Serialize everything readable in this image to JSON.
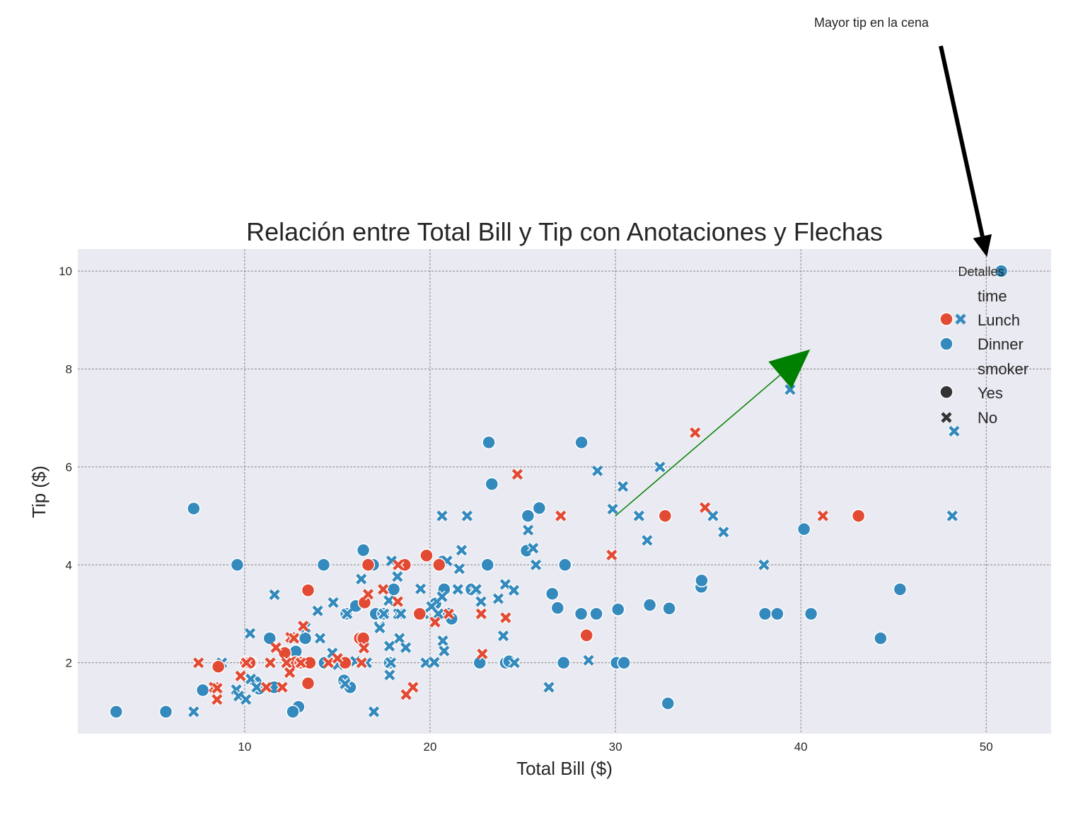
{
  "chart_data": {
    "type": "scatter",
    "title": "Relación entre Total Bill y Tip con Anotaciones y Flechas",
    "xlabel": "Total Bill ($)",
    "ylabel": "Tip ($)",
    "xlim": [
      1,
      53.5
    ],
    "ylim": [
      0.55,
      10.45
    ],
    "xticks": [
      10,
      20,
      30,
      40,
      50
    ],
    "yticks": [
      2,
      4,
      6,
      8,
      10
    ],
    "grid": true,
    "legend": {
      "title": "Detalles",
      "placement": "top-right",
      "hue_title": "time",
      "style_title": "smoker",
      "entries": [
        {
          "label": "Lunch",
          "color": "#E24A33",
          "marker": "circle-x"
        },
        {
          "label": "Dinner",
          "color": "#348ABD",
          "marker": "circle"
        },
        {
          "label": "Yes",
          "color": "#333333",
          "marker": "circle"
        },
        {
          "label": "No",
          "color": "#333333",
          "marker": "x"
        }
      ]
    },
    "annotations": [
      {
        "text": "Mayor tip en la cena",
        "xy": [
          50.8,
          10.0
        ],
        "xytext": [
          38,
          16.0
        ],
        "arrow_color": "#000000"
      },
      {
        "text": "",
        "xy": [
          40.5,
          8.4
        ],
        "xytext": [
          30,
          5.0
        ],
        "arrow_color": "#008000"
      }
    ],
    "colors": {
      "lunch": "#E24A33",
      "dinner": "#348ABD"
    },
    "series": [
      {
        "name": "Dinner",
        "smoker": "Yes",
        "marker": "circle",
        "color": "#348ABD",
        "points": [
          [
            3.07,
            1.0
          ],
          [
            5.75,
            1.0
          ],
          [
            7.25,
            5.15
          ],
          [
            7.74,
            1.44
          ],
          [
            9.6,
            4.0
          ],
          [
            10.34,
            2.0
          ],
          [
            10.59,
            1.61
          ],
          [
            10.77,
            1.47
          ],
          [
            11.35,
            2.5
          ],
          [
            11.59,
            1.5
          ],
          [
            12.16,
            2.2
          ],
          [
            12.9,
            1.1
          ],
          [
            12.6,
            1.0
          ],
          [
            12.76,
            2.23
          ],
          [
            13.27,
            2.5
          ],
          [
            14.26,
            4.0
          ],
          [
            14.31,
            2.0
          ],
          [
            15.36,
            1.64
          ],
          [
            15.69,
            1.5
          ],
          [
            15.48,
            3.0
          ],
          [
            16.0,
            3.16
          ],
          [
            16.27,
            2.5
          ],
          [
            16.93,
            4.0
          ],
          [
            16.4,
            4.3
          ],
          [
            17.07,
            3.0
          ],
          [
            17.47,
            3.0
          ],
          [
            17.82,
            2.0
          ],
          [
            18.04,
            3.5
          ],
          [
            20.69,
            4.07
          ],
          [
            20.29,
            3.21
          ],
          [
            20.76,
            3.5
          ],
          [
            21.01,
            3.0
          ],
          [
            22.23,
            3.5
          ],
          [
            22.68,
            2.0
          ],
          [
            23.1,
            4.0
          ],
          [
            23.17,
            6.5
          ],
          [
            23.33,
            5.65
          ],
          [
            21.16,
            2.9
          ],
          [
            24.08,
            2.0
          ],
          [
            24.27,
            2.03
          ],
          [
            25.28,
            5.0
          ],
          [
            25.21,
            4.29
          ],
          [
            25.89,
            5.16
          ],
          [
            26.59,
            3.41
          ],
          [
            26.88,
            3.12
          ],
          [
            27.2,
            2.0
          ],
          [
            27.28,
            4.0
          ],
          [
            28.17,
            6.5
          ],
          [
            28.15,
            3.0
          ],
          [
            28.97,
            3.0
          ],
          [
            30.06,
            2.0
          ],
          [
            30.14,
            3.09
          ],
          [
            30.46,
            2.0
          ],
          [
            31.85,
            3.18
          ],
          [
            32.83,
            1.17
          ],
          [
            32.9,
            3.11
          ],
          [
            34.63,
            3.55
          ],
          [
            34.65,
            3.68
          ],
          [
            38.07,
            3.0
          ],
          [
            38.73,
            3.0
          ],
          [
            40.17,
            4.73
          ],
          [
            40.55,
            3.0
          ],
          [
            44.3,
            2.5
          ],
          [
            45.35,
            3.5
          ],
          [
            50.81,
            10.0
          ]
        ]
      },
      {
        "name": "Dinner",
        "smoker": "No",
        "marker": "x",
        "color": "#348ABD",
        "points": [
          [
            7.25,
            1.0
          ],
          [
            8.77,
            2.0
          ],
          [
            9.55,
            1.45
          ],
          [
            9.68,
            1.32
          ],
          [
            10.07,
            1.25
          ],
          [
            10.29,
            2.6
          ],
          [
            10.33,
            1.67
          ],
          [
            10.65,
            1.5
          ],
          [
            11.61,
            3.39
          ],
          [
            11.38,
            2.0
          ],
          [
            12.03,
            1.5
          ],
          [
            12.43,
            1.8
          ],
          [
            12.54,
            2.5
          ],
          [
            12.69,
            2.0
          ],
          [
            13.0,
            2.0
          ],
          [
            13.13,
            2.0
          ],
          [
            13.42,
            1.58
          ],
          [
            13.28,
            2.72
          ],
          [
            13.94,
            3.06
          ],
          [
            14.07,
            2.5
          ],
          [
            14.73,
            2.2
          ],
          [
            14.78,
            3.23
          ],
          [
            15.04,
            1.96
          ],
          [
            15.42,
            1.57
          ],
          [
            15.53,
            3.0
          ],
          [
            15.98,
            2.03
          ],
          [
            16.29,
            3.71
          ],
          [
            16.45,
            2.47
          ],
          [
            16.58,
            2.0
          ],
          [
            16.97,
            1.0
          ],
          [
            17.26,
            2.74
          ],
          [
            17.29,
            2.71
          ],
          [
            17.51,
            3.0
          ],
          [
            17.78,
            3.27
          ],
          [
            17.81,
            2.34
          ],
          [
            17.89,
            2.0
          ],
          [
            17.92,
            4.08
          ],
          [
            17.82,
            1.75
          ],
          [
            18.24,
            3.76
          ],
          [
            18.29,
            3.0
          ],
          [
            18.35,
            2.5
          ],
          [
            18.43,
            3.0
          ],
          [
            18.69,
            2.31
          ],
          [
            19.44,
            3.0
          ],
          [
            19.49,
            3.51
          ],
          [
            19.77,
            2.0
          ],
          [
            20.08,
            3.15
          ],
          [
            20.23,
            2.01
          ],
          [
            20.45,
            3.0
          ],
          [
            20.65,
            3.35
          ],
          [
            20.69,
            2.45
          ],
          [
            20.76,
            2.24
          ],
          [
            20.92,
            4.08
          ],
          [
            20.65,
            5.0
          ],
          [
            21.58,
            3.92
          ],
          [
            21.7,
            4.3
          ],
          [
            22.42,
            3.48
          ],
          [
            22.49,
            3.5
          ],
          [
            22.75,
            3.25
          ],
          [
            22.0,
            5.0
          ],
          [
            23.68,
            3.31
          ],
          [
            23.95,
            2.55
          ],
          [
            24.06,
            3.6
          ],
          [
            24.55,
            2.0
          ],
          [
            24.71,
            5.85
          ],
          [
            25.29,
            4.71
          ],
          [
            25.56,
            4.34
          ],
          [
            25.71,
            4.0
          ],
          [
            26.41,
            1.5
          ],
          [
            28.44,
            2.56
          ],
          [
            28.55,
            2.05
          ],
          [
            29.03,
            5.92
          ],
          [
            29.85,
            5.14
          ],
          [
            30.4,
            5.6
          ],
          [
            31.27,
            5.0
          ],
          [
            31.71,
            4.5
          ],
          [
            32.4,
            6.0
          ],
          [
            35.26,
            5.0
          ],
          [
            35.83,
            4.67
          ],
          [
            38.01,
            4.0
          ],
          [
            39.42,
            7.58
          ],
          [
            48.17,
            5.0
          ],
          [
            48.27,
            6.73
          ],
          [
            24.52,
            3.48
          ],
          [
            19.65,
            3.0
          ],
          [
            21.5,
            3.5
          ]
        ]
      },
      {
        "name": "Lunch",
        "smoker": "Yes",
        "marker": "circle",
        "color": "#E24A33",
        "points": [
          [
            8.58,
            1.92
          ],
          [
            10.07,
            2.0
          ],
          [
            10.27,
            2.0
          ],
          [
            12.16,
            2.2
          ],
          [
            12.74,
            2.01
          ],
          [
            13.0,
            2.0
          ],
          [
            13.42,
            3.48
          ],
          [
            13.42,
            1.58
          ],
          [
            13.51,
            2.0
          ],
          [
            15.42,
            2.0
          ],
          [
            16.21,
            2.5
          ],
          [
            16.4,
            2.5
          ],
          [
            16.47,
            3.23
          ],
          [
            16.66,
            4.0
          ],
          [
            18.64,
            4.0
          ],
          [
            19.44,
            3.0
          ],
          [
            19.81,
            4.19
          ],
          [
            20.49,
            4.0
          ],
          [
            28.44,
            2.56
          ],
          [
            32.68,
            5.0
          ],
          [
            43.11,
            5.0
          ]
        ]
      },
      {
        "name": "Lunch",
        "smoker": "No",
        "marker": "x",
        "color": "#E24A33",
        "points": [
          [
            7.51,
            2.0
          ],
          [
            8.35,
            1.5
          ],
          [
            8.52,
            1.48
          ],
          [
            8.51,
            1.25
          ],
          [
            9.78,
            1.73
          ],
          [
            10.09,
            2.0
          ],
          [
            11.17,
            1.5
          ],
          [
            11.38,
            2.0
          ],
          [
            11.69,
            2.31
          ],
          [
            12.03,
            1.5
          ],
          [
            12.26,
            2.0
          ],
          [
            12.43,
            1.8
          ],
          [
            12.48,
            2.52
          ],
          [
            12.66,
            2.5
          ],
          [
            13.03,
            2.0
          ],
          [
            13.16,
            2.75
          ],
          [
            14.52,
            2.0
          ],
          [
            15.01,
            2.09
          ],
          [
            16.31,
            2.0
          ],
          [
            16.43,
            2.3
          ],
          [
            16.66,
            3.4
          ],
          [
            17.47,
            3.5
          ],
          [
            18.26,
            3.25
          ],
          [
            18.28,
            4.0
          ],
          [
            18.71,
            1.35
          ],
          [
            19.08,
            1.5
          ],
          [
            20.27,
            2.83
          ],
          [
            21.01,
            3.0
          ],
          [
            22.76,
            3.0
          ],
          [
            22.82,
            2.18
          ],
          [
            24.08,
            2.92
          ],
          [
            24.71,
            5.85
          ],
          [
            27.05,
            5.0
          ],
          [
            29.8,
            4.2
          ],
          [
            34.3,
            6.7
          ],
          [
            34.83,
            5.17
          ],
          [
            41.19,
            5.0
          ]
        ]
      }
    ]
  }
}
